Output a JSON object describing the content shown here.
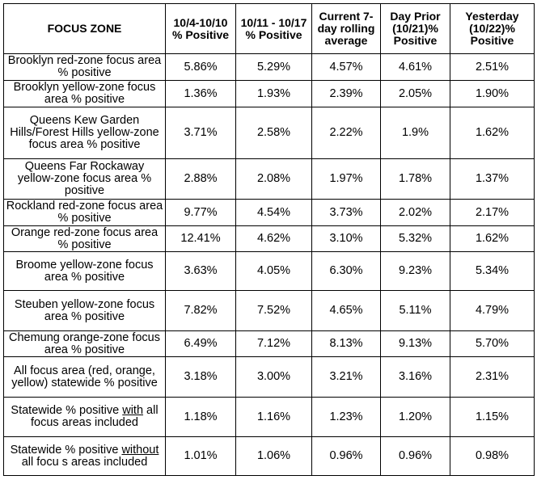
{
  "table": {
    "headers": [
      "FOCUS ZONE",
      "10/4-10/10 % Positive",
      "10/11 - 10/17 % Positive",
      "Current 7-day rolling average",
      "Day Prior (10/21)% Positive",
      "Yesterday (10/22)% Positive"
    ],
    "rows": [
      {
        "zone": "Brooklyn red-zone focus area % positive",
        "values": [
          "5.86%",
          "5.29%",
          "4.57%",
          "4.61%",
          "2.51%"
        ]
      },
      {
        "zone": "Brooklyn yellow-zone focus area % positive",
        "values": [
          "1.36%",
          "1.93%",
          "2.39%",
          "2.05%",
          "1.90%"
        ]
      },
      {
        "zone": "Queens Kew Garden Hills/Forest Hills yellow-zone focus area % positive",
        "values": [
          "3.71%",
          "2.58%",
          "2.22%",
          "1.9%",
          "1.62%"
        ]
      },
      {
        "zone": "Queens Far Rockaway yellow-zone focus area % positive",
        "values": [
          "2.88%",
          "2.08%",
          "1.97%",
          "1.78%",
          "1.37%"
        ]
      },
      {
        "zone": "Rockland red-zone focus area % positive",
        "values": [
          "9.77%",
          "4.54%",
          "3.73%",
          "2.02%",
          "2.17%"
        ]
      },
      {
        "zone": "Orange red-zone focus area % positive",
        "values": [
          "12.41%",
          "4.62%",
          "3.10%",
          "5.32%",
          "1.62%"
        ]
      },
      {
        "zone": "Broome yellow-zone focus area % positive",
        "values": [
          "3.63%",
          "4.05%",
          "6.30%",
          "9.23%",
          "5.34%"
        ]
      },
      {
        "zone": "Steuben yellow-zone focus area % positive",
        "values": [
          "7.82%",
          "7.52%",
          "4.65%",
          "5.11%",
          "4.79%"
        ]
      },
      {
        "zone": "Chemung orange-zone focus area % positive",
        "values": [
          "6.49%",
          "7.12%",
          "8.13%",
          "9.13%",
          "5.70%"
        ]
      },
      {
        "zone": "All focus area (red, orange, yellow) statewide % positive",
        "values": [
          "3.18%",
          "3.00%",
          "3.21%",
          "3.16%",
          "2.31%"
        ]
      },
      {
        "zone_parts": [
          "Statewide % positive ",
          "with",
          " all focus areas included"
        ],
        "values": [
          "1.18%",
          "1.16%",
          "1.23%",
          "1.20%",
          "1.15%"
        ]
      },
      {
        "zone_parts": [
          "Statewide % positive ",
          "without",
          " all focu s areas included"
        ],
        "values": [
          "1.01%",
          "1.06%",
          "0.96%",
          "0.96%",
          "0.98%"
        ]
      }
    ]
  }
}
